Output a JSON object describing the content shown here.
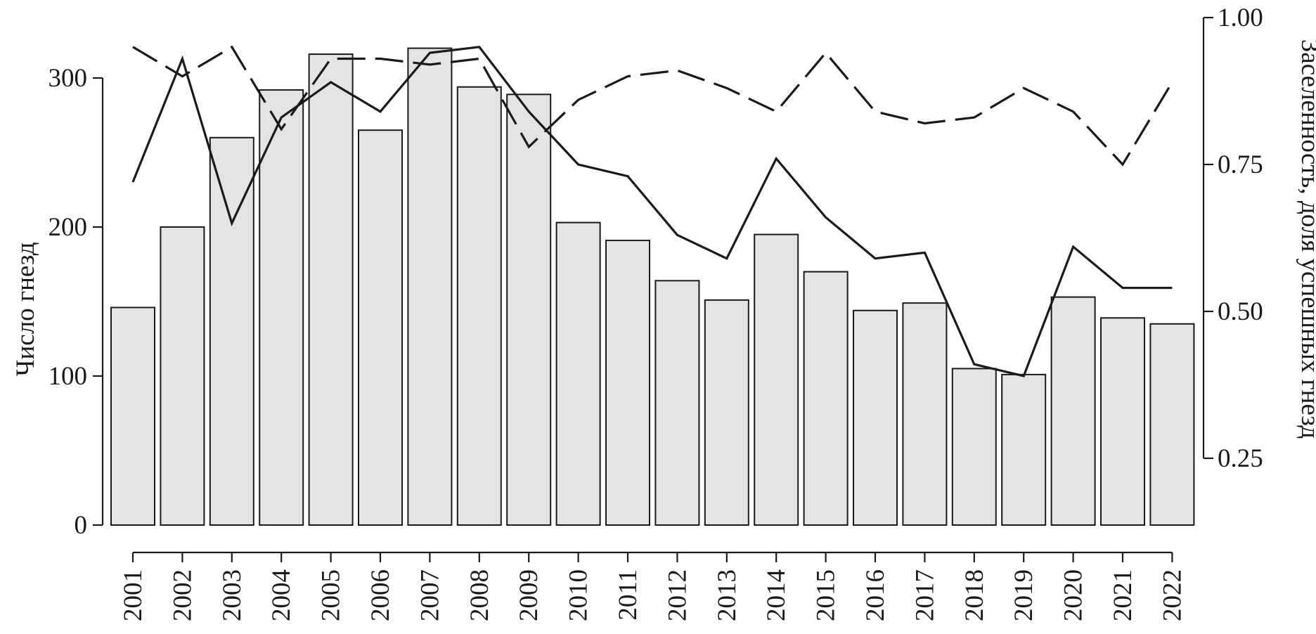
{
  "chart_data": {
    "type": "bar",
    "categories": [
      "2001",
      "2002",
      "2003",
      "2004",
      "2005",
      "2006",
      "2007",
      "2008",
      "2009",
      "2010",
      "2011",
      "2012",
      "2013",
      "2014",
      "2015",
      "2016",
      "2017",
      "2018",
      "2019",
      "2020",
      "2021",
      "2022"
    ],
    "xlabel": "",
    "ylabel": "Число гнезд",
    "ylabel_right": "Заселенность, доля успешных гнезд",
    "ylim": [
      0,
      340
    ],
    "ylim_right": [
      0.13,
      1.0
    ],
    "yticks": [
      "0",
      "100",
      "200",
      "300"
    ],
    "yticks_right": [
      "0.25",
      "0.50",
      "0.75",
      "1.00"
    ],
    "grid": false,
    "legend": "none",
    "series": [
      {
        "kind": "bar",
        "axis": "left",
        "color": "#e3e4e6",
        "values": [
          146,
          200,
          260,
          292,
          316,
          265,
          320,
          294,
          289,
          203,
          191,
          164,
          151,
          195,
          170,
          144,
          149,
          105,
          101,
          153,
          139,
          135
        ]
      },
      {
        "kind": "line",
        "style": "solid",
        "axis": "right",
        "color": "#1a1a1a",
        "values": [
          0.72,
          0.93,
          0.65,
          0.83,
          0.89,
          0.84,
          0.94,
          0.95,
          0.84,
          0.75,
          0.73,
          0.63,
          0.59,
          0.76,
          0.66,
          0.59,
          0.6,
          0.41,
          0.39,
          0.61,
          0.54,
          0.54
        ]
      },
      {
        "kind": "line",
        "style": "dashed",
        "axis": "right",
        "color": "#1a1a1a",
        "values": [
          0.95,
          0.9,
          0.95,
          0.81,
          0.93,
          0.93,
          0.92,
          0.93,
          0.78,
          0.86,
          0.9,
          0.91,
          0.88,
          0.84,
          0.94,
          0.84,
          0.82,
          0.83,
          0.88,
          0.84,
          0.75,
          0.89
        ]
      }
    ]
  }
}
